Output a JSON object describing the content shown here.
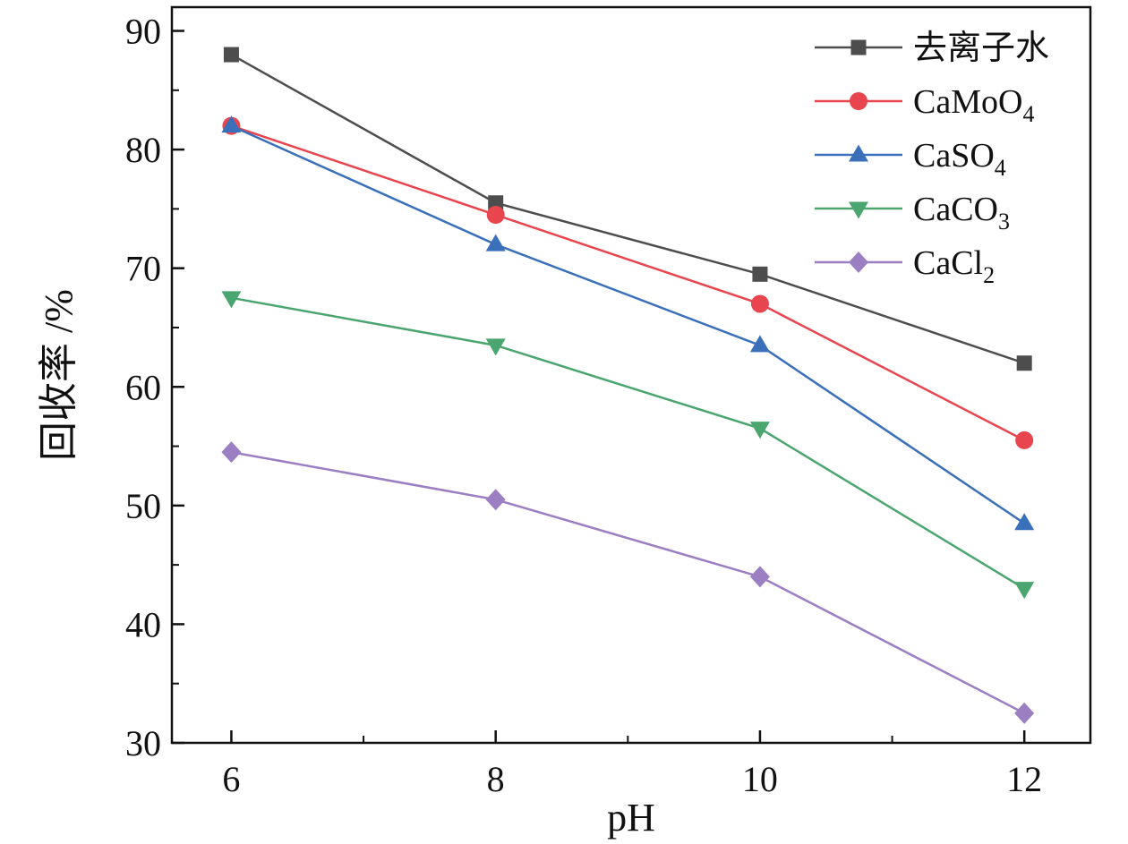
{
  "chart_data": {
    "type": "line",
    "title": "",
    "xlabel": "pH",
    "ylabel": "回收率 /%",
    "xlim": [
      5.55,
      12.5
    ],
    "ylim": [
      30,
      92
    ],
    "x_ticks": [
      6,
      8,
      10,
      12
    ],
    "y_ticks": [
      30,
      40,
      50,
      60,
      70,
      80,
      90
    ],
    "grid": false,
    "legend_position": "top-right",
    "x": [
      6,
      8,
      10,
      12
    ],
    "series": [
      {
        "name": "去离子水",
        "name_main": "去离子水",
        "name_sub": "",
        "color": "#4d4d4d",
        "marker": "square",
        "values": [
          88,
          75.5,
          69.5,
          62
        ]
      },
      {
        "name": "CaMoO4",
        "name_main": "CaMoO",
        "name_sub": "4",
        "color": "#e8454f",
        "marker": "circle",
        "values": [
          82,
          74.5,
          67,
          55.5
        ]
      },
      {
        "name": "CaSO4",
        "name_main": "CaSO",
        "name_sub": "4",
        "color": "#3a6fba",
        "marker": "triangle-up",
        "values": [
          82,
          72,
          63.5,
          48.5
        ]
      },
      {
        "name": "CaCO3",
        "name_main": "CaCO",
        "name_sub": "3",
        "color": "#4aa56e",
        "marker": "triangle-down",
        "values": [
          67.5,
          63.5,
          56.5,
          43
        ]
      },
      {
        "name": "CaCl2",
        "name_main": "CaCl",
        "name_sub": "2",
        "color": "#9b7fc2",
        "marker": "diamond",
        "values": [
          54.5,
          50.5,
          44,
          32.5
        ]
      }
    ]
  }
}
